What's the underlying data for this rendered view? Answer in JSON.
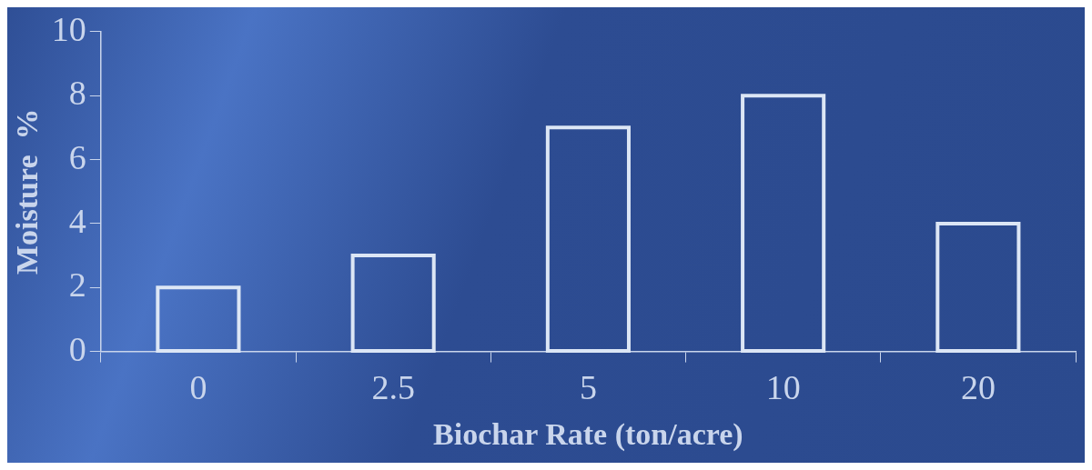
{
  "chart_data": {
    "type": "bar",
    "xlabel": "Biochar Rate (ton/acre)",
    "ylabel": "Moisture  %",
    "categories": [
      "0",
      "2.5",
      "5",
      "10",
      "20"
    ],
    "values": [
      2,
      3,
      7,
      8,
      4
    ],
    "color": "#dce6f5",
    "ylim": [
      0,
      10
    ],
    "yticks": [
      0,
      2,
      4,
      6,
      8,
      10
    ],
    "grid": false,
    "legend": false
  }
}
